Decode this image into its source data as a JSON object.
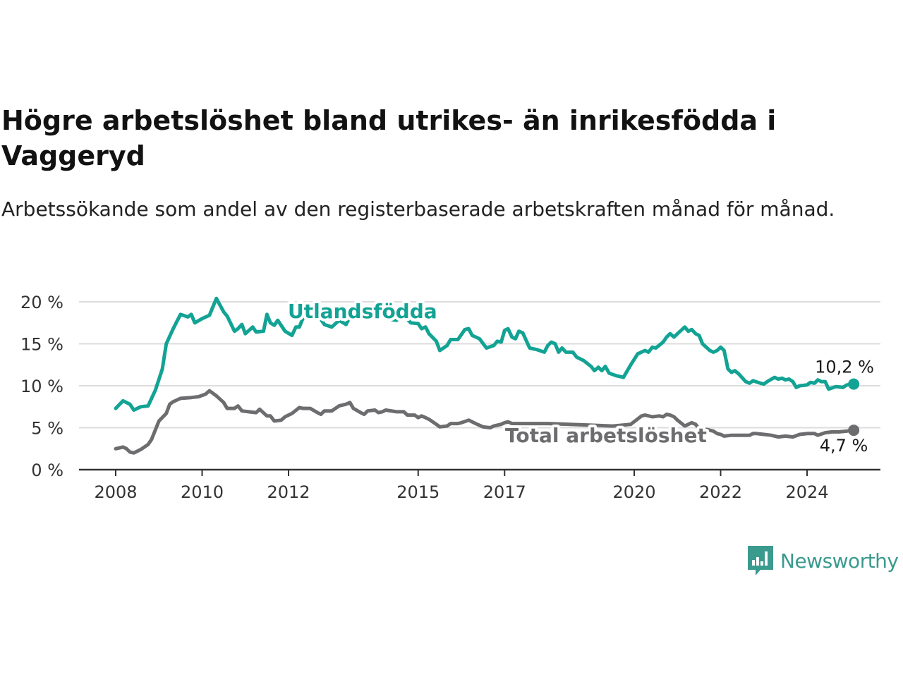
{
  "title": "Högre arbetslöshet bland utrikes- än inrikesfödda i Vaggeryd",
  "subtitle": "Arbetssökande som andel av den registerbaserade arbetskraften månad för månad.",
  "brand": "Newsworthy",
  "colors": {
    "utlandsfodda": "#12a394",
    "total": "#6d6d70",
    "grid": "#dcdcdc",
    "axis": "#333333",
    "brand": "#3a9a8e"
  },
  "chart_data": {
    "type": "line",
    "ylim": [
      0,
      20
    ],
    "yticks": [
      0,
      5,
      10,
      15,
      20
    ],
    "ytick_labels": [
      "0 %",
      "5 %",
      "10 %",
      "15 %",
      "20 %"
    ],
    "xticks": [
      2008,
      2010,
      2012,
      2015,
      2017,
      2020,
      2022,
      2024
    ],
    "xtick_labels": [
      "2008",
      "2010",
      "2012",
      "2015",
      "2017",
      "2020",
      "2022",
      "2024"
    ],
    "grid": true,
    "series": [
      {
        "name": "Utlandsfödda",
        "end_label": "10,2 %",
        "points": [
          [
            2008.0,
            7.3
          ],
          [
            2008.17,
            8.2
          ],
          [
            2008.33,
            7.8
          ],
          [
            2008.42,
            7.1
          ],
          [
            2008.58,
            7.5
          ],
          [
            2008.75,
            7.6
          ],
          [
            2008.92,
            9.5
          ],
          [
            2009.08,
            12.0
          ],
          [
            2009.17,
            15.0
          ],
          [
            2009.33,
            16.8
          ],
          [
            2009.5,
            18.5
          ],
          [
            2009.67,
            18.2
          ],
          [
            2009.75,
            18.5
          ],
          [
            2009.83,
            17.5
          ],
          [
            2010.0,
            18.0
          ],
          [
            2010.17,
            18.4
          ],
          [
            2010.33,
            20.4
          ],
          [
            2010.5,
            18.8
          ],
          [
            2010.58,
            18.3
          ],
          [
            2010.75,
            16.5
          ],
          [
            2010.83,
            16.8
          ],
          [
            2010.92,
            17.3
          ],
          [
            2011.0,
            16.2
          ],
          [
            2011.17,
            17.0
          ],
          [
            2011.25,
            16.4
          ],
          [
            2011.42,
            16.5
          ],
          [
            2011.5,
            18.5
          ],
          [
            2011.58,
            17.5
          ],
          [
            2011.67,
            17.2
          ],
          [
            2011.75,
            17.8
          ],
          [
            2011.92,
            16.5
          ],
          [
            2012.08,
            16.0
          ],
          [
            2012.17,
            17.0
          ],
          [
            2012.25,
            17.0
          ],
          [
            2012.33,
            18.0
          ],
          [
            2012.5,
            19.5
          ],
          [
            2012.67,
            18.5
          ],
          [
            2012.83,
            17.3
          ],
          [
            2013.0,
            17.0
          ],
          [
            2013.17,
            17.8
          ],
          [
            2013.33,
            17.3
          ],
          [
            2013.5,
            19.0
          ],
          [
            2013.75,
            18.5
          ],
          [
            2014.0,
            18.8
          ],
          [
            2014.25,
            18.0
          ],
          [
            2014.5,
            17.8
          ],
          [
            2014.67,
            18.4
          ],
          [
            2014.83,
            17.5
          ],
          [
            2015.0,
            17.4
          ],
          [
            2015.08,
            16.8
          ],
          [
            2015.17,
            17.0
          ],
          [
            2015.25,
            16.2
          ],
          [
            2015.42,
            15.3
          ],
          [
            2015.5,
            14.2
          ],
          [
            2015.67,
            14.8
          ],
          [
            2015.75,
            15.5
          ],
          [
            2015.92,
            15.5
          ],
          [
            2016.08,
            16.7
          ],
          [
            2016.17,
            16.8
          ],
          [
            2016.25,
            16.0
          ],
          [
            2016.42,
            15.6
          ],
          [
            2016.58,
            14.5
          ],
          [
            2016.75,
            14.8
          ],
          [
            2016.83,
            15.3
          ],
          [
            2016.92,
            15.2
          ],
          [
            2017.0,
            16.6
          ],
          [
            2017.08,
            16.8
          ],
          [
            2017.17,
            15.8
          ],
          [
            2017.25,
            15.6
          ],
          [
            2017.33,
            16.5
          ],
          [
            2017.42,
            16.3
          ],
          [
            2017.58,
            14.5
          ],
          [
            2017.75,
            14.3
          ],
          [
            2017.92,
            14.0
          ],
          [
            2018.0,
            14.8
          ],
          [
            2018.08,
            15.2
          ],
          [
            2018.17,
            15.0
          ],
          [
            2018.25,
            14.0
          ],
          [
            2018.33,
            14.5
          ],
          [
            2018.42,
            14.0
          ],
          [
            2018.58,
            14.0
          ],
          [
            2018.67,
            13.4
          ],
          [
            2018.83,
            13.0
          ],
          [
            2019.0,
            12.3
          ],
          [
            2019.08,
            11.8
          ],
          [
            2019.17,
            12.2
          ],
          [
            2019.25,
            11.8
          ],
          [
            2019.33,
            12.3
          ],
          [
            2019.42,
            11.5
          ],
          [
            2019.58,
            11.2
          ],
          [
            2019.75,
            11.0
          ],
          [
            2019.92,
            12.5
          ],
          [
            2020.08,
            13.8
          ],
          [
            2020.25,
            14.2
          ],
          [
            2020.33,
            14.0
          ],
          [
            2020.42,
            14.6
          ],
          [
            2020.5,
            14.5
          ],
          [
            2020.67,
            15.2
          ],
          [
            2020.75,
            15.8
          ],
          [
            2020.83,
            16.2
          ],
          [
            2020.92,
            15.8
          ],
          [
            2021.0,
            16.2
          ],
          [
            2021.17,
            17.0
          ],
          [
            2021.25,
            16.5
          ],
          [
            2021.33,
            16.7
          ],
          [
            2021.42,
            16.2
          ],
          [
            2021.5,
            16.0
          ],
          [
            2021.58,
            15.0
          ],
          [
            2021.75,
            14.2
          ],
          [
            2021.83,
            14.0
          ],
          [
            2021.92,
            14.2
          ],
          [
            2022.0,
            14.6
          ],
          [
            2022.08,
            14.2
          ],
          [
            2022.17,
            12.0
          ],
          [
            2022.25,
            11.6
          ],
          [
            2022.33,
            11.8
          ],
          [
            2022.42,
            11.4
          ],
          [
            2022.58,
            10.5
          ],
          [
            2022.67,
            10.3
          ],
          [
            2022.75,
            10.6
          ],
          [
            2022.92,
            10.3
          ],
          [
            2023.0,
            10.2
          ],
          [
            2023.08,
            10.5
          ],
          [
            2023.25,
            11.0
          ],
          [
            2023.33,
            10.8
          ],
          [
            2023.42,
            10.9
          ],
          [
            2023.5,
            10.7
          ],
          [
            2023.58,
            10.8
          ],
          [
            2023.67,
            10.5
          ],
          [
            2023.75,
            9.8
          ],
          [
            2023.83,
            10.0
          ],
          [
            2024.0,
            10.1
          ],
          [
            2024.08,
            10.4
          ],
          [
            2024.17,
            10.3
          ],
          [
            2024.25,
            10.7
          ],
          [
            2024.33,
            10.5
          ],
          [
            2024.42,
            10.5
          ],
          [
            2024.5,
            9.6
          ],
          [
            2024.67,
            9.9
          ],
          [
            2024.83,
            9.8
          ],
          [
            2024.92,
            10.1
          ],
          [
            2025.08,
            10.2
          ]
        ]
      },
      {
        "name": "Total arbetslöshet",
        "end_label": "4,7 %",
        "points": [
          [
            2008.0,
            2.5
          ],
          [
            2008.17,
            2.7
          ],
          [
            2008.25,
            2.5
          ],
          [
            2008.33,
            2.1
          ],
          [
            2008.42,
            2.0
          ],
          [
            2008.58,
            2.4
          ],
          [
            2008.75,
            3.0
          ],
          [
            2008.83,
            3.6
          ],
          [
            2009.0,
            5.8
          ],
          [
            2009.17,
            6.7
          ],
          [
            2009.25,
            7.8
          ],
          [
            2009.33,
            8.1
          ],
          [
            2009.5,
            8.5
          ],
          [
            2009.75,
            8.6
          ],
          [
            2009.92,
            8.7
          ],
          [
            2010.08,
            9.0
          ],
          [
            2010.17,
            9.4
          ],
          [
            2010.33,
            8.8
          ],
          [
            2010.5,
            8.0
          ],
          [
            2010.58,
            7.3
          ],
          [
            2010.75,
            7.3
          ],
          [
            2010.83,
            7.6
          ],
          [
            2010.92,
            7.0
          ],
          [
            2011.08,
            6.9
          ],
          [
            2011.25,
            6.8
          ],
          [
            2011.33,
            7.2
          ],
          [
            2011.5,
            6.4
          ],
          [
            2011.58,
            6.4
          ],
          [
            2011.67,
            5.8
          ],
          [
            2011.83,
            5.9
          ],
          [
            2011.92,
            6.3
          ],
          [
            2012.08,
            6.7
          ],
          [
            2012.25,
            7.4
          ],
          [
            2012.33,
            7.3
          ],
          [
            2012.42,
            7.3
          ],
          [
            2012.5,
            7.3
          ],
          [
            2012.67,
            6.8
          ],
          [
            2012.75,
            6.6
          ],
          [
            2012.83,
            7.0
          ],
          [
            2013.0,
            7.0
          ],
          [
            2013.17,
            7.6
          ],
          [
            2013.33,
            7.8
          ],
          [
            2013.42,
            8.0
          ],
          [
            2013.5,
            7.3
          ],
          [
            2013.67,
            6.8
          ],
          [
            2013.75,
            6.6
          ],
          [
            2013.83,
            7.0
          ],
          [
            2014.0,
            7.1
          ],
          [
            2014.08,
            6.8
          ],
          [
            2014.17,
            6.9
          ],
          [
            2014.25,
            7.1
          ],
          [
            2014.5,
            6.9
          ],
          [
            2014.67,
            6.9
          ],
          [
            2014.75,
            6.5
          ],
          [
            2014.92,
            6.5
          ],
          [
            2015.0,
            6.2
          ],
          [
            2015.08,
            6.4
          ],
          [
            2015.17,
            6.2
          ],
          [
            2015.25,
            6.0
          ],
          [
            2015.42,
            5.4
          ],
          [
            2015.5,
            5.1
          ],
          [
            2015.67,
            5.2
          ],
          [
            2015.75,
            5.5
          ],
          [
            2015.92,
            5.5
          ],
          [
            2016.0,
            5.6
          ],
          [
            2016.17,
            5.9
          ],
          [
            2016.33,
            5.5
          ],
          [
            2016.5,
            5.1
          ],
          [
            2016.67,
            5.0
          ],
          [
            2016.75,
            5.2
          ],
          [
            2016.92,
            5.4
          ],
          [
            2017.0,
            5.6
          ],
          [
            2017.08,
            5.7
          ],
          [
            2017.17,
            5.5
          ],
          [
            2017.5,
            5.5
          ],
          [
            2018.0,
            5.5
          ],
          [
            2018.5,
            5.4
          ],
          [
            2019.0,
            5.3
          ],
          [
            2019.5,
            5.2
          ],
          [
            2019.92,
            5.4
          ],
          [
            2020.17,
            6.4
          ],
          [
            2020.25,
            6.5
          ],
          [
            2020.42,
            6.3
          ],
          [
            2020.58,
            6.4
          ],
          [
            2020.67,
            6.3
          ],
          [
            2020.75,
            6.6
          ],
          [
            2020.83,
            6.5
          ],
          [
            2020.92,
            6.3
          ],
          [
            2021.0,
            5.9
          ],
          [
            2021.17,
            5.2
          ],
          [
            2021.25,
            5.4
          ],
          [
            2021.33,
            5.6
          ],
          [
            2021.42,
            5.4
          ],
          [
            2021.5,
            4.9
          ],
          [
            2021.58,
            4.6
          ],
          [
            2021.67,
            4.8
          ],
          [
            2021.83,
            4.6
          ],
          [
            2021.92,
            4.3
          ],
          [
            2022.0,
            4.2
          ],
          [
            2022.08,
            4.0
          ],
          [
            2022.25,
            4.1
          ],
          [
            2022.5,
            4.1
          ],
          [
            2022.67,
            4.1
          ],
          [
            2022.75,
            4.3
          ],
          [
            2022.83,
            4.3
          ],
          [
            2023.0,
            4.2
          ],
          [
            2023.17,
            4.1
          ],
          [
            2023.33,
            3.9
          ],
          [
            2023.5,
            4.0
          ],
          [
            2023.67,
            3.9
          ],
          [
            2023.83,
            4.2
          ],
          [
            2024.0,
            4.3
          ],
          [
            2024.17,
            4.3
          ],
          [
            2024.25,
            4.1
          ],
          [
            2024.42,
            4.4
          ],
          [
            2024.58,
            4.5
          ],
          [
            2024.75,
            4.5
          ],
          [
            2024.92,
            4.6
          ],
          [
            2025.08,
            4.7
          ]
        ]
      }
    ]
  }
}
